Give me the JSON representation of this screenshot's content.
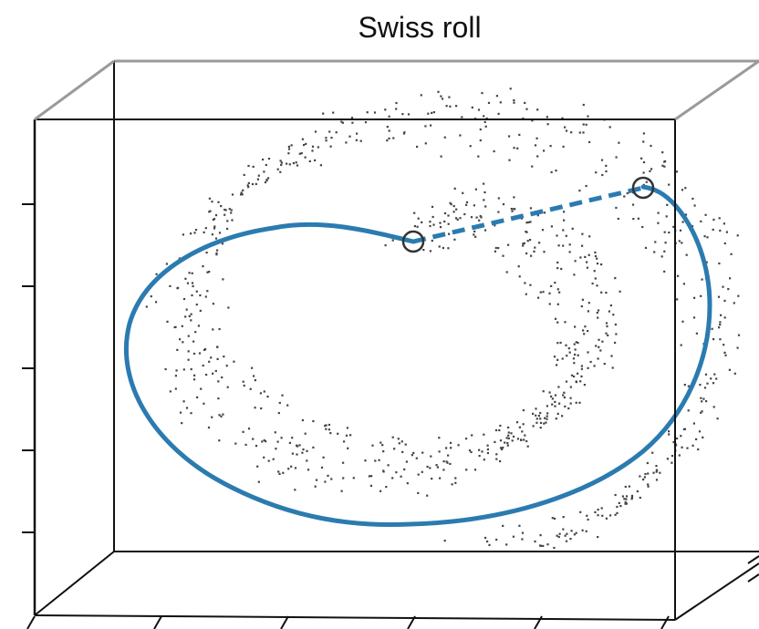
{
  "chart_data": {
    "type": "scatter",
    "title": "Swiss roll",
    "xlabel": "",
    "ylabel": "",
    "zlabel": "",
    "projection": "3d",
    "grid": false,
    "legend": "none",
    "colors": {
      "points": "#444444",
      "geodesic": "#2b7bb0",
      "box": "#111111",
      "box_back": "#999999",
      "endpoints": "#333333"
    },
    "series": [
      {
        "kind": "points",
        "style": "scattered dots sampled from a rolled 2-D sheet",
        "count": 1000
      },
      {
        "kind": "geodesic-path",
        "style": "solid line along the roll surface"
      },
      {
        "kind": "euclidean-shortcut",
        "style": "dashed straight line between the two end points"
      }
    ]
  }
}
